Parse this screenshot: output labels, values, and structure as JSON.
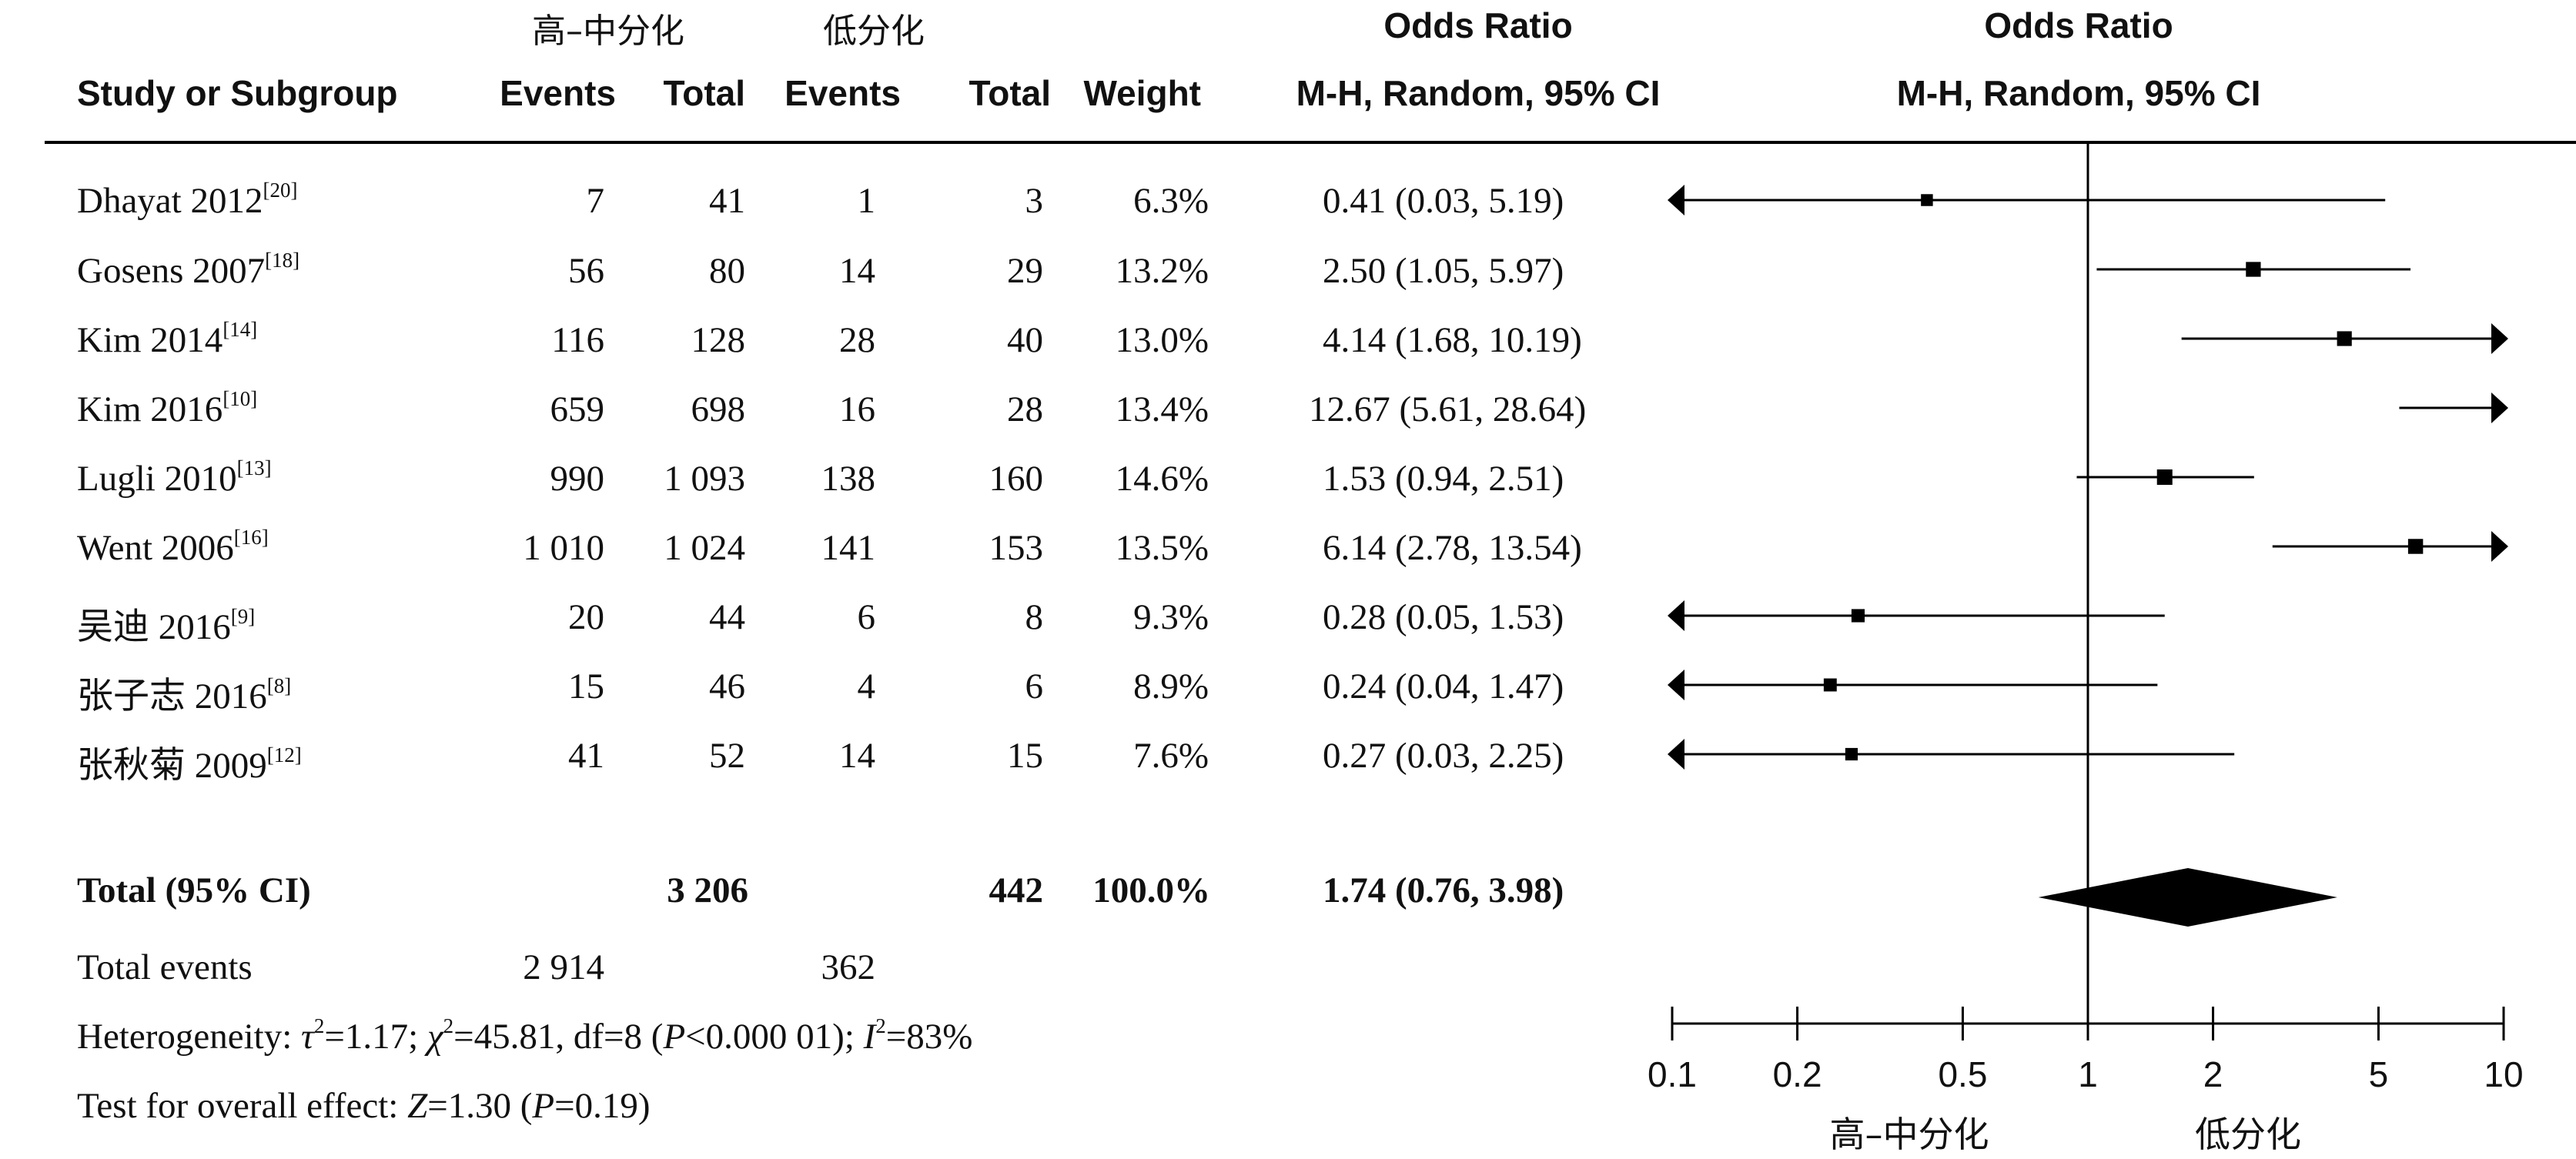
{
  "headers": {
    "group1": "高–中分化",
    "group2": "低分化",
    "odds_ratio_1": "Odds Ratio",
    "odds_ratio_2": "Odds Ratio",
    "study": "Study or Subgroup",
    "events1": "Events",
    "total1": "Total",
    "events2": "Events",
    "total2": "Total",
    "weight": "Weight",
    "method1": "M-H, Random, 95% CI",
    "method2": "M-H, Random, 95% CI"
  },
  "studies": [
    {
      "name": "Dhayat 2012",
      "ref": "[20]",
      "e1": "7",
      "t1": "41",
      "e2": "1",
      "t2": "3",
      "weight": "6.3%",
      "ci": "0.41 (0.03, 5.19)"
    },
    {
      "name": "Gosens 2007",
      "ref": "[18]",
      "e1": "56",
      "t1": "80",
      "e2": "14",
      "t2": "29",
      "weight": "13.2%",
      "ci": "2.50 (1.05, 5.97)"
    },
    {
      "name": "Kim 2014",
      "ref": "[14]",
      "e1": "116",
      "t1": "128",
      "e2": "28",
      "t2": "40",
      "weight": "13.0%",
      "ci": "4.14 (1.68, 10.19)"
    },
    {
      "name": "Kim 2016",
      "ref": "[10]",
      "e1": "659",
      "t1": "698",
      "e2": "16",
      "t2": "28",
      "weight": "13.4%",
      "ci": "12.67 (5.61, 28.64)"
    },
    {
      "name": "Lugli 2010",
      "ref": "[13]",
      "e1": "990",
      "t1": "1 093",
      "e2": "138",
      "t2": "160",
      "weight": "14.6%",
      "ci": "1.53 (0.94, 2.51)"
    },
    {
      "name": "Went 2006",
      "ref": "[16]",
      "e1": "1 010",
      "t1": "1 024",
      "e2": "141",
      "t2": "153",
      "weight": "13.5%",
      "ci": "6.14 (2.78, 13.54)"
    },
    {
      "name": "吴迪 2016",
      "ref": "[9]",
      "e1": "20",
      "t1": "44",
      "e2": "6",
      "t2": "8",
      "weight": "9.3%",
      "ci": "0.28 (0.05, 1.53)"
    },
    {
      "name": "张子志 2016",
      "ref": "[8]",
      "e1": "15",
      "t1": "46",
      "e2": "4",
      "t2": "6",
      "weight": "8.9%",
      "ci": "0.24 (0.04, 1.47)"
    },
    {
      "name": "张秋菊 2009",
      "ref": "[12]",
      "e1": "41",
      "t1": "52",
      "e2": "14",
      "t2": "15",
      "weight": "7.6%",
      "ci": "0.27 (0.03, 2.25)"
    }
  ],
  "total": {
    "label": "Total (95% CI)",
    "t1": "3 206",
    "t2": "442",
    "weight": "100.0%",
    "ci": "1.74 (0.76, 3.98)"
  },
  "total_events": {
    "label": "Total events",
    "e1": "2 914",
    "e2": "362"
  },
  "heterogeneity": {
    "label": "Heterogeneity: ",
    "tau_sym": "τ",
    "tau_val": "=1.17; ",
    "chi_sym": "χ",
    "chi_val": "=45.81, df=8 (",
    "p_sym": "P",
    "p_val": "<0.000 01); ",
    "i_sym": "I",
    "i_val": "=83%"
  },
  "overall": {
    "label": "Test for overall effect: ",
    "z_sym": "Z",
    "z_val": "=1.30 (",
    "p_sym": "P",
    "p_val": "=0.19)"
  },
  "chart_data": {
    "type": "forest",
    "scale": "log",
    "xlim": [
      0.1,
      10
    ],
    "ticks": [
      "0.1",
      "0.2",
      "0.5",
      "1",
      "2",
      "5",
      "10"
    ],
    "tick_values": [
      0.1,
      0.2,
      0.5,
      1,
      2,
      5,
      10
    ],
    "null_value": 1,
    "favours_left": "高–中分化",
    "favours_right": "低分化",
    "studies": [
      {
        "name": "Dhayat 2012",
        "or": 0.41,
        "lo": 0.03,
        "hi": 5.19,
        "weight": 6.3
      },
      {
        "name": "Gosens 2007",
        "or": 2.5,
        "lo": 1.05,
        "hi": 5.97,
        "weight": 13.2
      },
      {
        "name": "Kim 2014",
        "or": 4.14,
        "lo": 1.68,
        "hi": 10.19,
        "weight": 13.0
      },
      {
        "name": "Kim 2016",
        "or": 12.67,
        "lo": 5.61,
        "hi": 28.64,
        "weight": 13.4
      },
      {
        "name": "Lugli 2010",
        "or": 1.53,
        "lo": 0.94,
        "hi": 2.51,
        "weight": 14.6
      },
      {
        "name": "Went 2006",
        "or": 6.14,
        "lo": 2.78,
        "hi": 13.54,
        "weight": 13.5
      },
      {
        "name": "吴迪 2016",
        "or": 0.28,
        "lo": 0.05,
        "hi": 1.53,
        "weight": 9.3
      },
      {
        "name": "张子志 2016",
        "or": 0.24,
        "lo": 0.04,
        "hi": 1.47,
        "weight": 8.9
      },
      {
        "name": "张秋菊 2009",
        "or": 0.27,
        "lo": 0.03,
        "hi": 2.25,
        "weight": 7.6
      }
    ],
    "pooled": {
      "or": 1.74,
      "lo": 0.76,
      "hi": 3.98
    }
  }
}
